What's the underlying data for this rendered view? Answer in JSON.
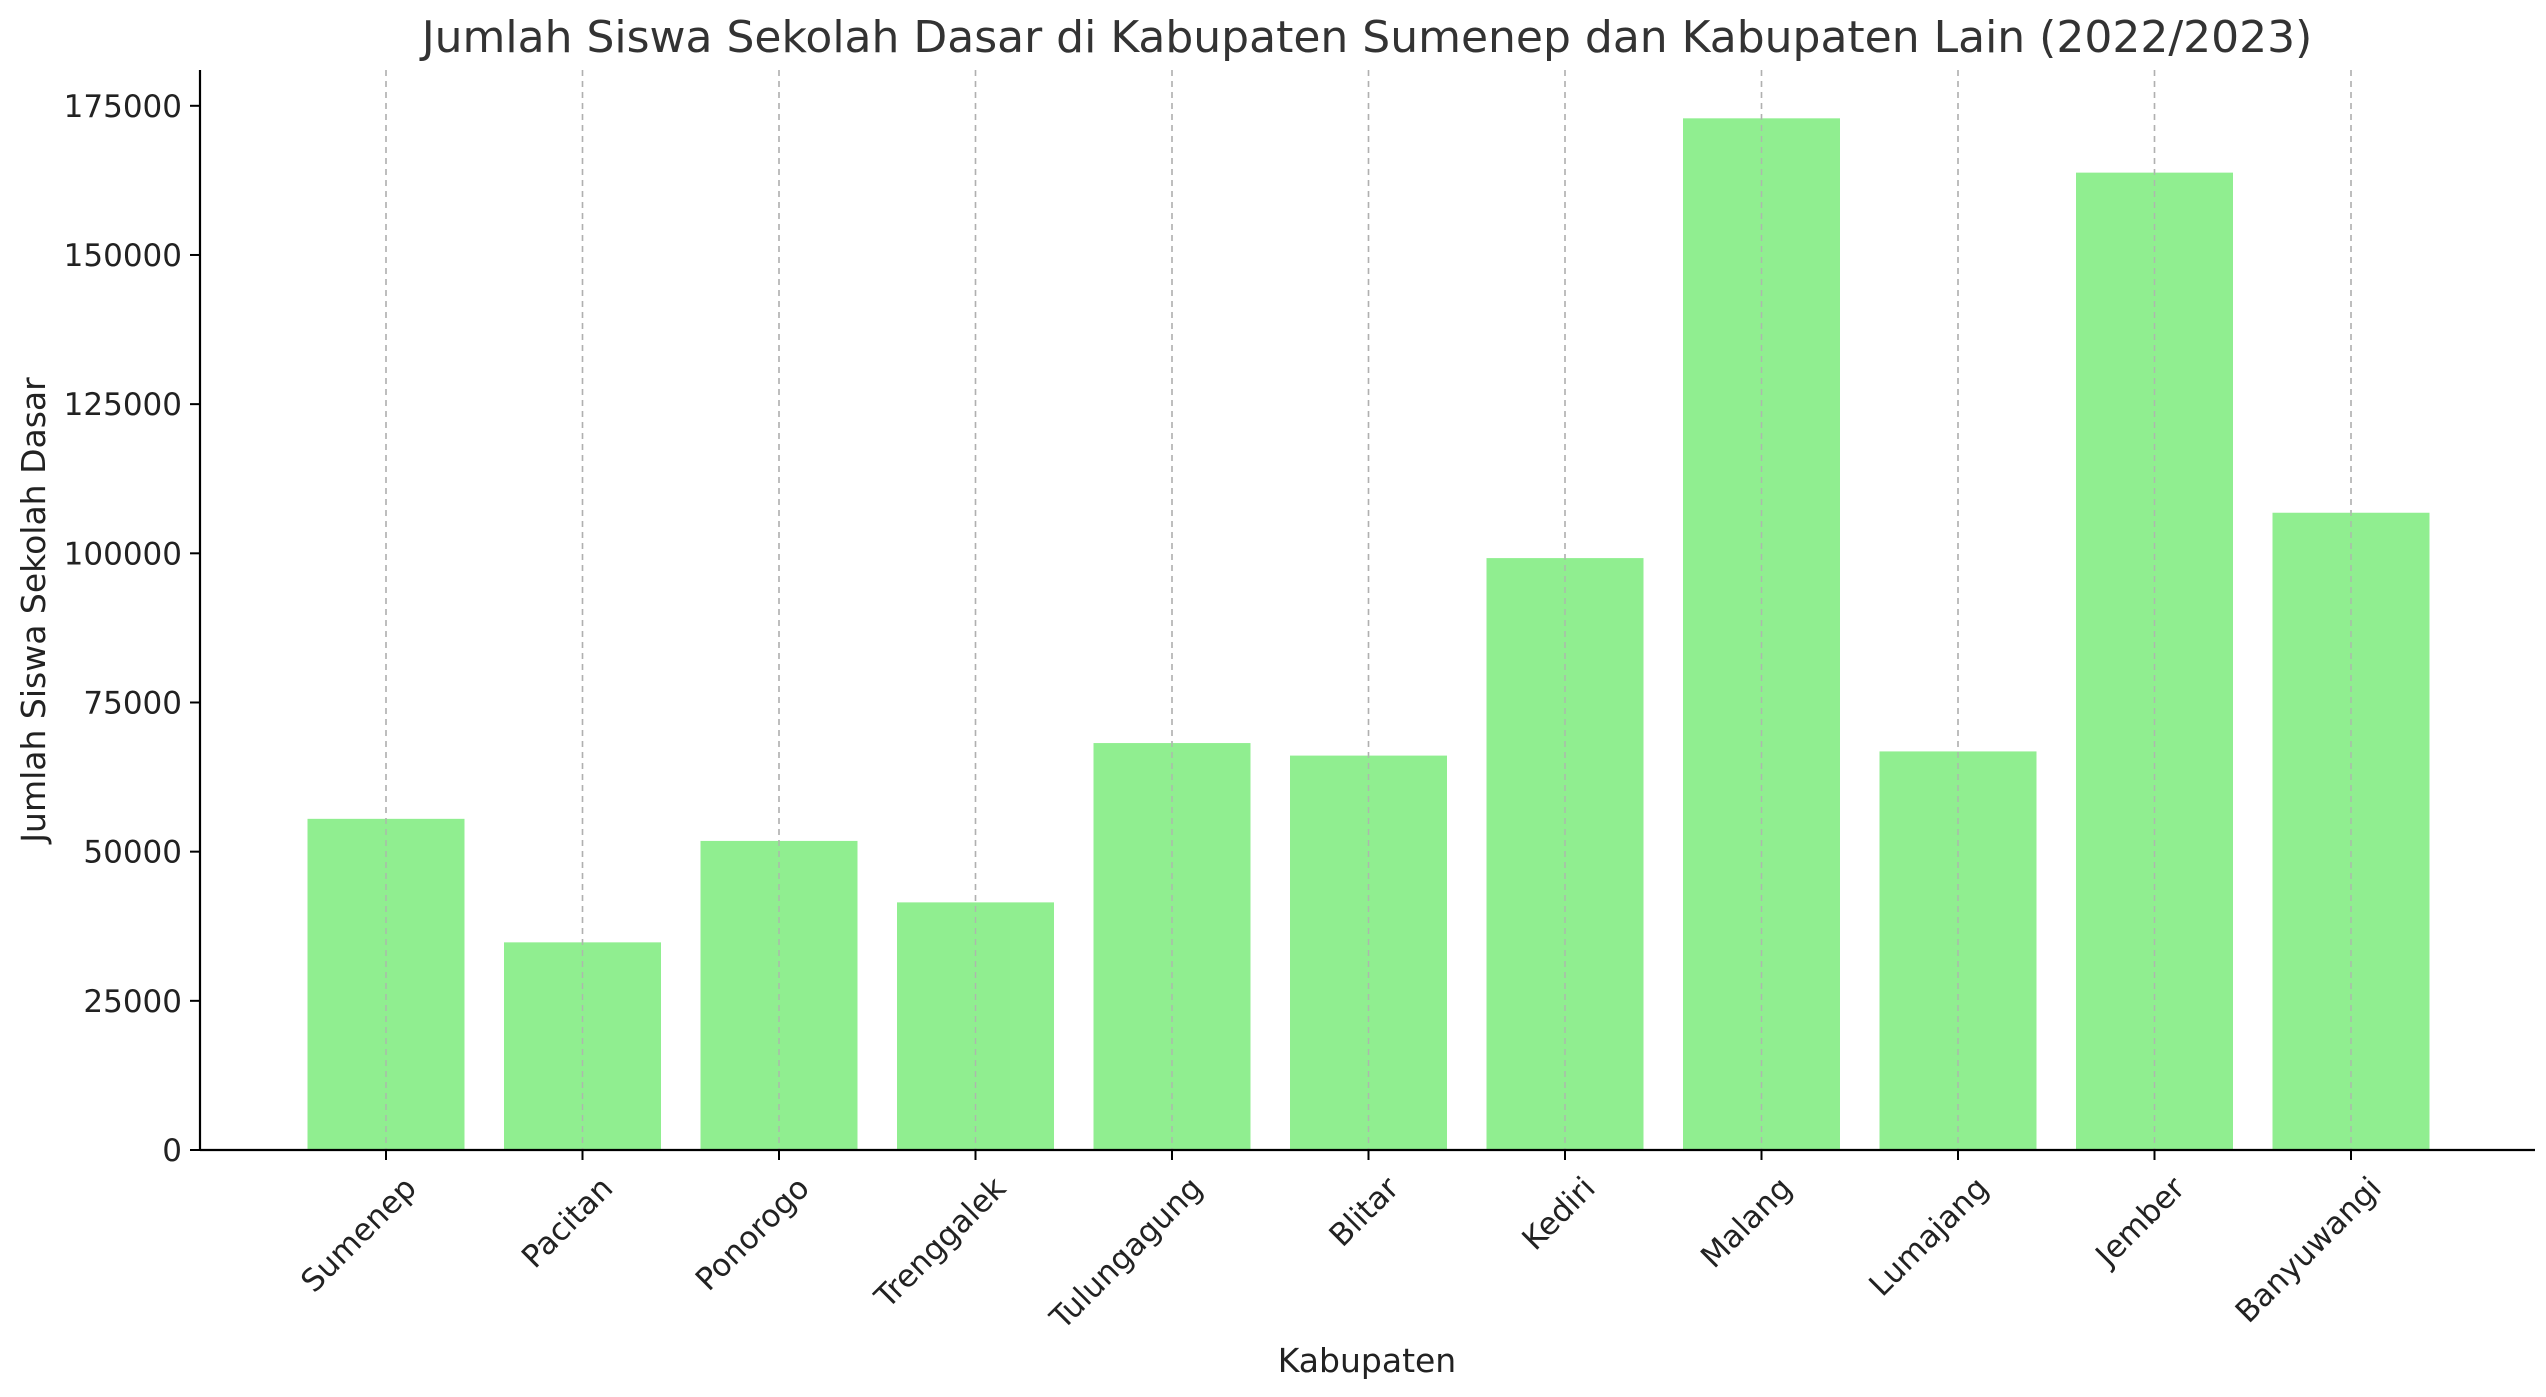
{
  "chart_data": {
    "type": "bar",
    "title": "Jumlah Siswa Sekolah Dasar di Kabupaten Sumenep dan Kabupaten Lain (2022/2023)",
    "xlabel": "Kabupaten",
    "ylabel": "Jumlah Siswa Sekolah Dasar",
    "categories": [
      "Sumenep",
      "Pacitan",
      "Ponorogo",
      "Trenggalek",
      "Tulungagung",
      "Blitar",
      "Kediri",
      "Malang",
      "Lumajang",
      "Jember",
      "Banyuwangi"
    ],
    "values": [
      55500,
      34800,
      51800,
      41500,
      68200,
      66100,
      99200,
      172900,
      66800,
      163800,
      106800
    ],
    "ylim": [
      0,
      181000
    ],
    "yticks": [
      0,
      25000,
      50000,
      75000,
      100000,
      125000,
      150000,
      175000
    ],
    "bar_color": "#90ee90",
    "grid": "vertical-dashed",
    "legend": "none"
  }
}
